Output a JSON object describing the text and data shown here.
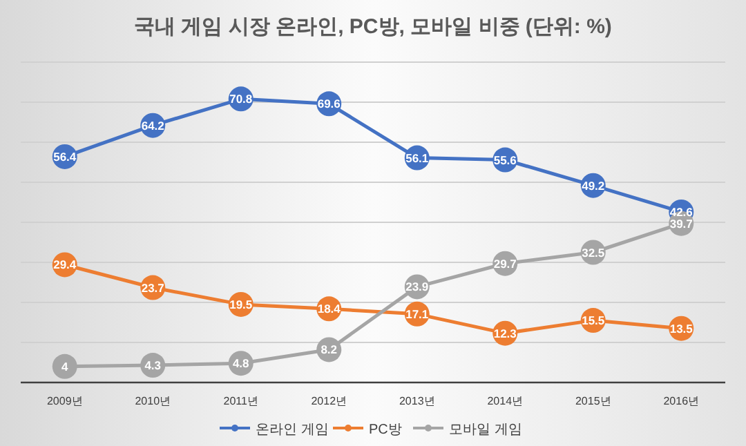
{
  "chart_data": {
    "type": "line",
    "title": "국내 게임 시장 온라인, PC방, 모바일 비중 (단위: %)",
    "categories": [
      "2009년",
      "2010년",
      "2011년",
      "2012년",
      "2013년",
      "2014년",
      "2015년",
      "2016년"
    ],
    "series": [
      {
        "name": "온라인 게임",
        "color": "#4472c4",
        "values": [
          56.4,
          64.2,
          70.8,
          69.6,
          56.1,
          55.6,
          49.2,
          42.6
        ]
      },
      {
        "name": "PC방",
        "color": "#ed7d31",
        "values": [
          29.4,
          23.7,
          19.5,
          18.4,
          17.1,
          12.3,
          15.5,
          13.5
        ]
      },
      {
        "name": "모바일 게임",
        "color": "#a5a5a5",
        "values": [
          4,
          4.3,
          4.8,
          8.2,
          23.9,
          29.7,
          32.5,
          39.7
        ]
      }
    ],
    "ylim": [
      0,
      80
    ],
    "yticks": [
      {
        "value": 0,
        "label": null
      },
      {
        "value": 10,
        "label": null
      },
      {
        "value": 20,
        "label": null
      },
      {
        "value": 30,
        "label": null
      },
      {
        "value": 40,
        "label": null
      },
      {
        "value": 50,
        "label": null
      },
      {
        "value": 60,
        "label": null
      },
      {
        "value": 70,
        "label": null
      },
      {
        "value": 80,
        "label": null
      }
    ],
    "tick_labels": "x",
    "grid": "y",
    "legend": "bottom",
    "marker": "circle",
    "line_style": "solid",
    "data_labels": true
  }
}
